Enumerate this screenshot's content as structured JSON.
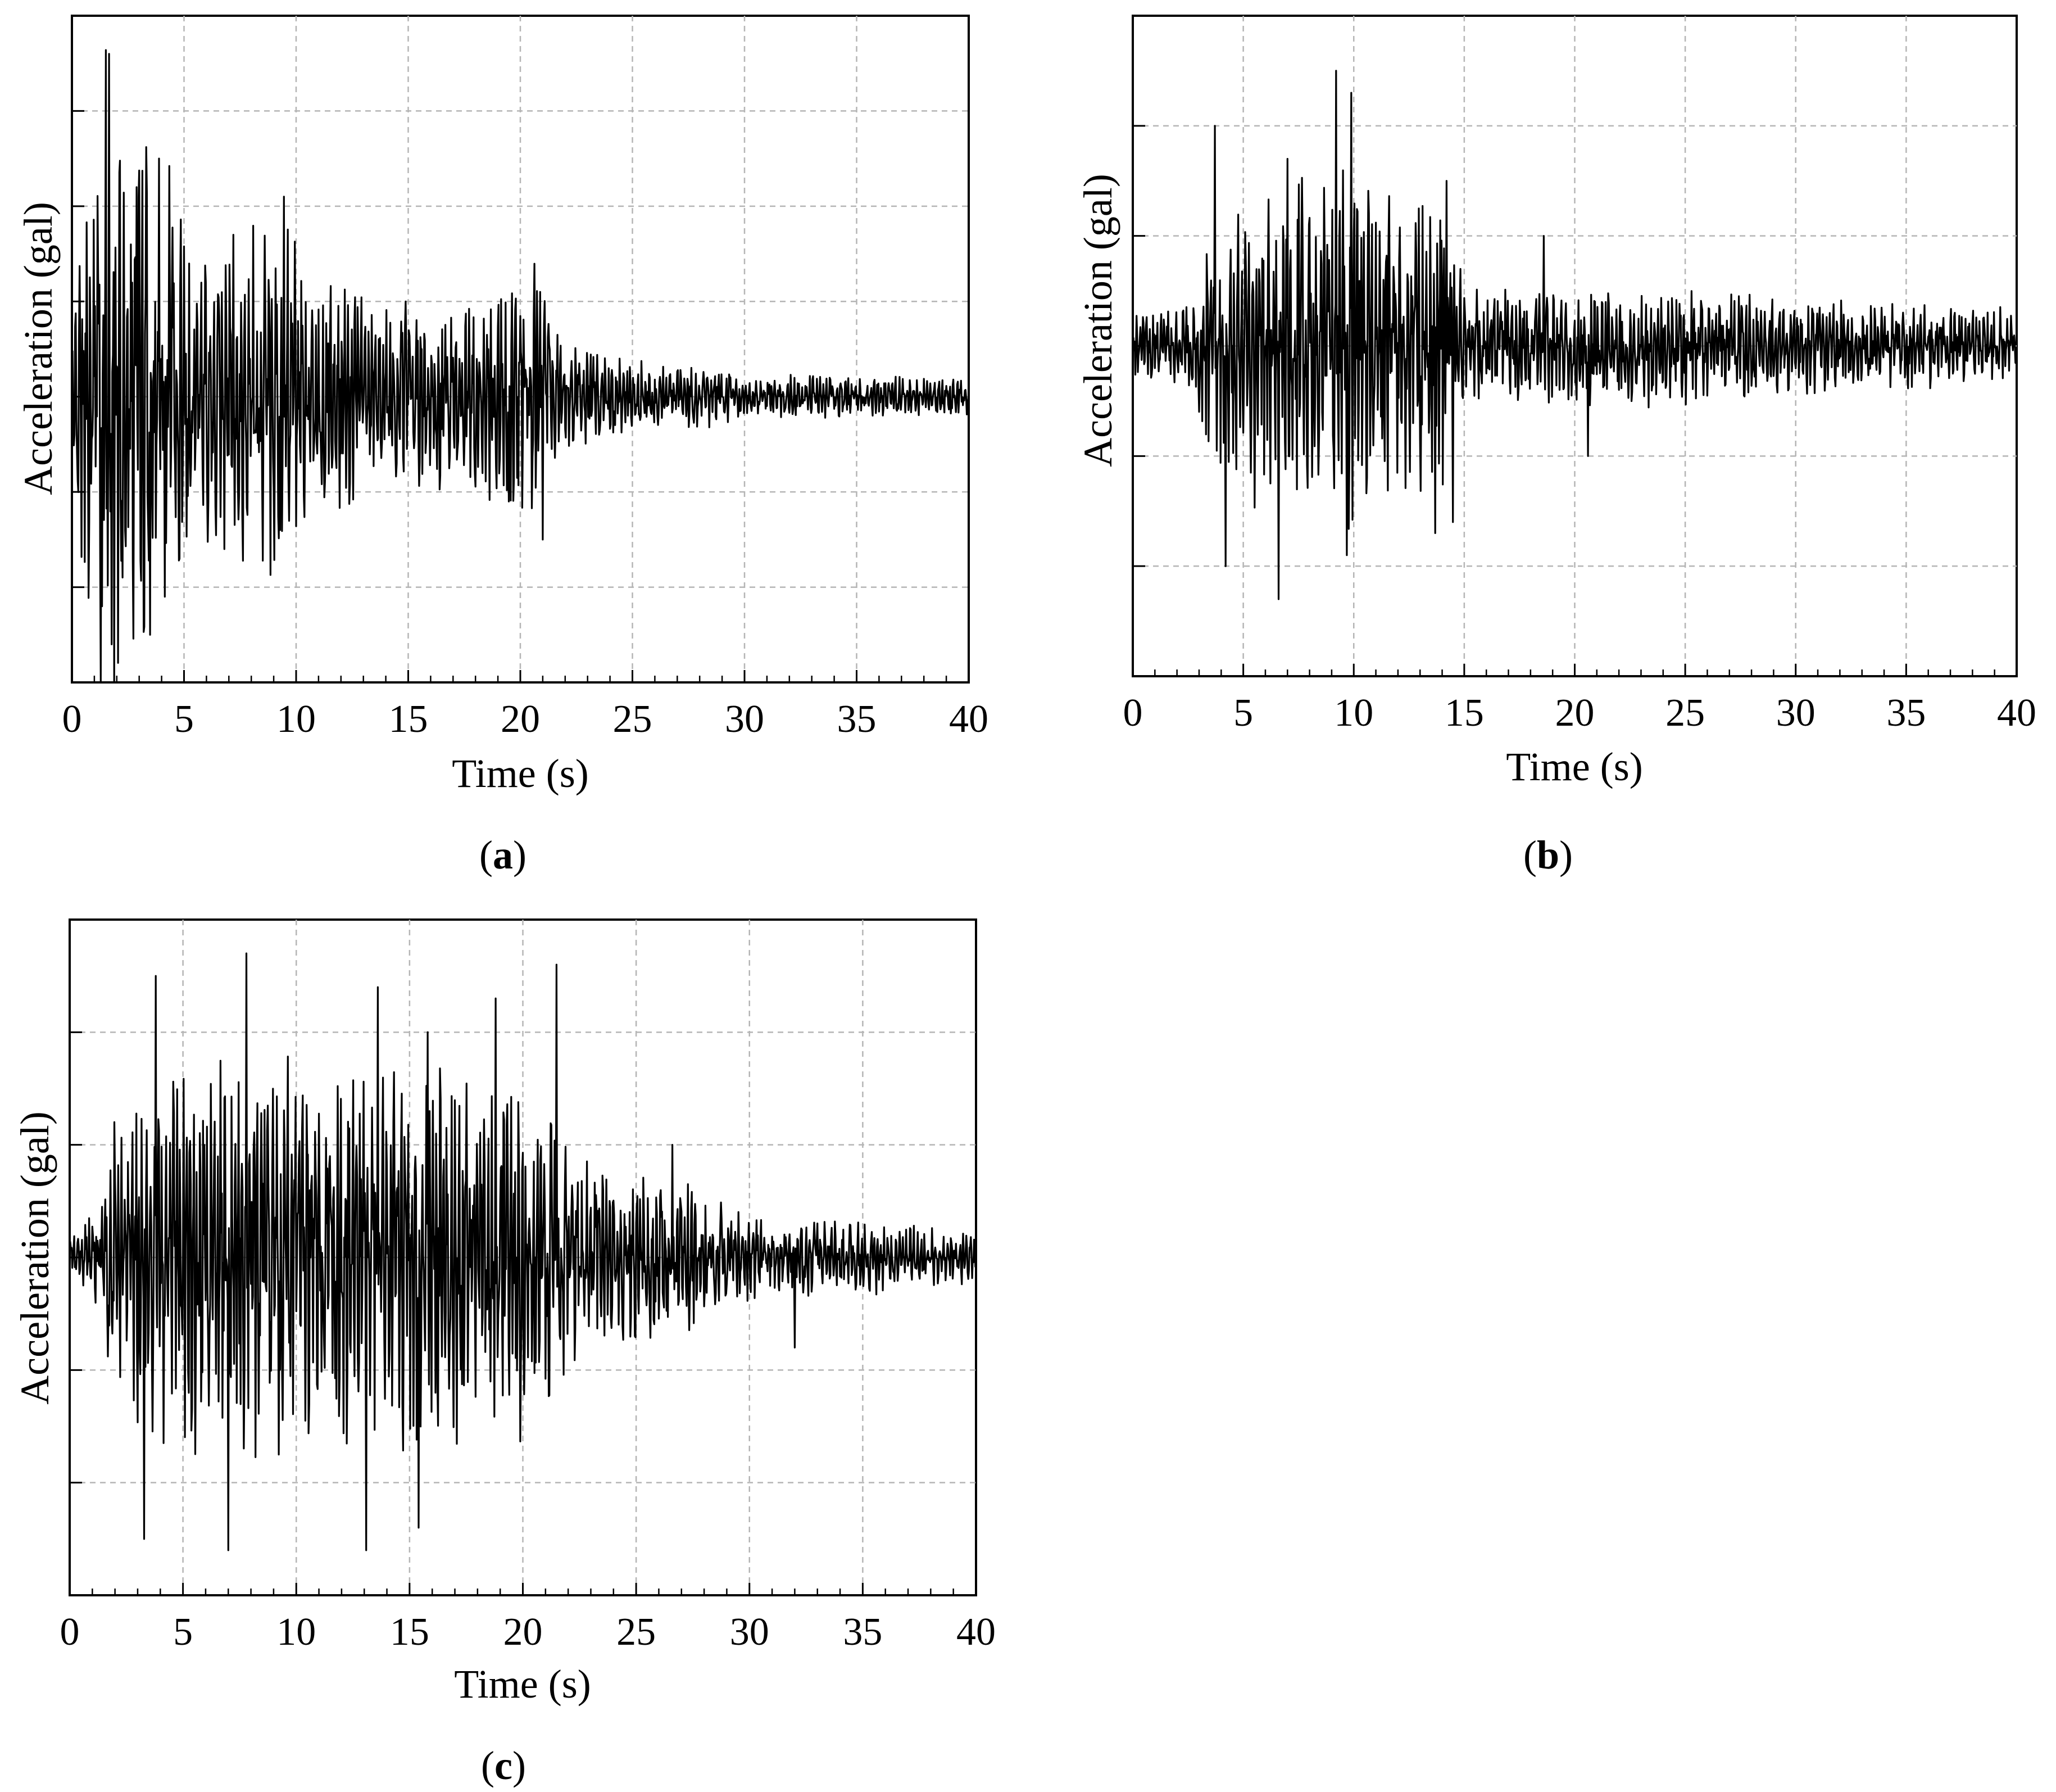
{
  "chart_data": [
    {
      "type": "line",
      "panel_label": "a",
      "xlabel": "Time (s)",
      "ylabel": "Acceleration (gal)",
      "xlim": [
        0,
        40
      ],
      "ylim": [
        -3,
        4
      ],
      "x_ticks": [
        0,
        5,
        10,
        15,
        20,
        25,
        30,
        35,
        40
      ],
      "y_tick_labels_shown": false,
      "grid": true,
      "line_color": "#000000",
      "envelope": [
        [
          0,
          0.9
        ],
        [
          1.5,
          3.2
        ],
        [
          2.5,
          2.5
        ],
        [
          4.2,
          2.4
        ],
        [
          5.5,
          1.3
        ],
        [
          7.5,
          1.6
        ],
        [
          9.5,
          1.7
        ],
        [
          11,
          1.1
        ],
        [
          14,
          0.9
        ],
        [
          17,
          0.85
        ],
        [
          19.5,
          1.1
        ],
        [
          21,
          1.3
        ],
        [
          22,
          0.5
        ],
        [
          25,
          0.35
        ],
        [
          28,
          0.3
        ],
        [
          30,
          0.22
        ],
        [
          40,
          0.18
        ]
      ],
      "peaks": [
        [
          1.65,
          3.6
        ],
        [
          1.78,
          -2.6
        ],
        [
          1.35,
          -2.2
        ],
        [
          2.9,
          2.2
        ],
        [
          3.5,
          -2.5
        ],
        [
          3.9,
          2.5
        ],
        [
          4.15,
          -2.1
        ],
        [
          6.8,
          -1.6
        ],
        [
          7.2,
          1.7
        ],
        [
          9.3,
          -1.4
        ],
        [
          9.45,
          2.1
        ],
        [
          19.5,
          -1.1
        ],
        [
          20.9,
          1.1
        ],
        [
          21.0,
          -1.5
        ]
      ],
      "seed": 11
    },
    {
      "type": "line",
      "panel_label": "b",
      "xlabel": "Time (s)",
      "ylabel": "Acceleration (gal)",
      "xlim": [
        0,
        40
      ],
      "ylim": [
        -3,
        3
      ],
      "x_ticks": [
        0,
        5,
        10,
        15,
        20,
        25,
        30,
        35,
        40
      ],
      "y_tick_labels_shown": false,
      "grid": true,
      "line_color": "#000000",
      "envelope": [
        [
          0,
          0.25
        ],
        [
          2.5,
          0.35
        ],
        [
          3.3,
          1.0
        ],
        [
          6,
          1.4
        ],
        [
          9,
          1.7
        ],
        [
          11,
          1.3
        ],
        [
          14,
          1.2
        ],
        [
          15,
          0.5
        ],
        [
          18,
          0.45
        ],
        [
          23,
          0.5
        ],
        [
          29,
          0.4
        ],
        [
          35,
          0.35
        ],
        [
          40,
          0.3
        ]
      ],
      "peaks": [
        [
          3.7,
          2.0
        ],
        [
          4.2,
          -2.0
        ],
        [
          6.6,
          -2.3
        ],
        [
          7.0,
          1.7
        ],
        [
          9.2,
          2.5
        ],
        [
          9.7,
          -1.9
        ],
        [
          9.9,
          2.3
        ],
        [
          13.7,
          -1.7
        ],
        [
          14.2,
          1.5
        ],
        [
          14.5,
          -1.6
        ],
        [
          18.6,
          1.0
        ],
        [
          20.6,
          -1.0
        ]
      ],
      "seed": 23
    },
    {
      "type": "line",
      "panel_label": "c",
      "xlabel": "Time (s)",
      "ylabel": "Acceleration (gal)",
      "xlim": [
        0,
        40
      ],
      "ylim": [
        -3,
        3
      ],
      "x_ticks": [
        0,
        5,
        10,
        15,
        20,
        25,
        30,
        35,
        40
      ],
      "y_tick_labels_shown": false,
      "grid": true,
      "line_color": "#000000",
      "envelope": [
        [
          0,
          0.15
        ],
        [
          1.3,
          0.4
        ],
        [
          2,
          1.3
        ],
        [
          4,
          1.6
        ],
        [
          8,
          1.6
        ],
        [
          12,
          1.5
        ],
        [
          16,
          1.5
        ],
        [
          21,
          1.5
        ],
        [
          22,
          0.9
        ],
        [
          24,
          0.7
        ],
        [
          26.5,
          0.65
        ],
        [
          28,
          0.5
        ],
        [
          30,
          0.35
        ],
        [
          35,
          0.3
        ],
        [
          40,
          0.2
        ]
      ],
      "peaks": [
        [
          3.3,
          -2.5
        ],
        [
          3.8,
          2.5
        ],
        [
          7.0,
          -2.6
        ],
        [
          7.8,
          2.7
        ],
        [
          13.1,
          -2.6
        ],
        [
          13.6,
          2.4
        ],
        [
          15.4,
          -2.4
        ],
        [
          15.8,
          2.0
        ],
        [
          18.8,
          2.3
        ],
        [
          21.5,
          2.6
        ],
        [
          26.6,
          1.0
        ],
        [
          32.0,
          -0.8
        ]
      ],
      "seed": 37
    }
  ]
}
